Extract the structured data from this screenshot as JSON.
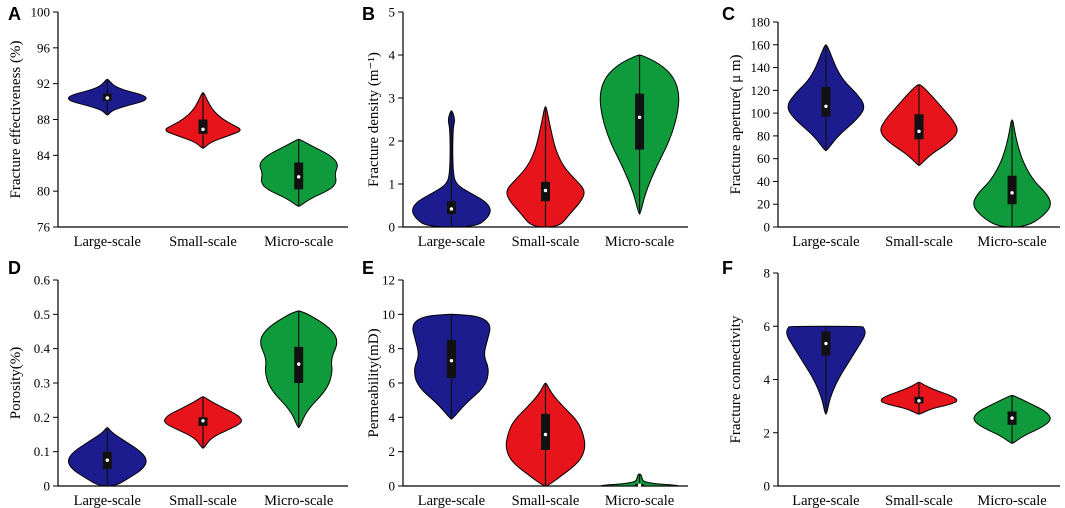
{
  "chart_data": [
    {
      "panel": "A",
      "type": "violin",
      "ylabel": "Fracture effectiveness (%)",
      "ylim": [
        76,
        100
      ],
      "yticks": [
        76,
        80,
        84,
        88,
        92,
        96,
        100
      ],
      "categories": [
        "Large-scale",
        "Small-scale",
        "Micro-scale"
      ],
      "colors": [
        "#1c1c8e",
        "#e8141c",
        "#0f9a3c"
      ],
      "series": [
        {
          "name": "Large-scale",
          "min": 88.5,
          "max": 92.5,
          "q1": 90.1,
          "median": 90.4,
          "q3": 90.9,
          "profile": [
            [
              88.5,
              0.02
            ],
            [
              89.0,
              0.12
            ],
            [
              89.5,
              0.45
            ],
            [
              90.0,
              0.9
            ],
            [
              90.4,
              1.0
            ],
            [
              90.8,
              0.85
            ],
            [
              91.3,
              0.4
            ],
            [
              91.8,
              0.15
            ],
            [
              92.5,
              0.02
            ]
          ]
        },
        {
          "name": "Small-scale",
          "min": 84.8,
          "max": 91.0,
          "q1": 86.4,
          "median": 86.9,
          "q3": 88.0,
          "profile": [
            [
              84.8,
              0.02
            ],
            [
              85.5,
              0.2
            ],
            [
              86.2,
              0.65
            ],
            [
              86.8,
              1.0
            ],
            [
              87.4,
              0.75
            ],
            [
              88.0,
              0.5
            ],
            [
              89.0,
              0.25
            ],
            [
              90.2,
              0.1
            ],
            [
              91.0,
              0.02
            ]
          ]
        },
        {
          "name": "Micro-scale",
          "min": 78.3,
          "max": 85.8,
          "q1": 80.2,
          "median": 81.6,
          "q3": 83.2,
          "profile": [
            [
              78.3,
              0.02
            ],
            [
              79.2,
              0.3
            ],
            [
              80.2,
              0.8
            ],
            [
              81.0,
              0.95
            ],
            [
              82.0,
              0.9
            ],
            [
              83.0,
              1.0
            ],
            [
              84.0,
              0.8
            ],
            [
              85.0,
              0.35
            ],
            [
              85.8,
              0.02
            ]
          ]
        }
      ]
    },
    {
      "panel": "B",
      "type": "violin",
      "ylabel": "Fracture density (m⁻¹)",
      "ylim": [
        0,
        5
      ],
      "yticks": [
        0,
        1,
        2,
        3,
        4,
        5
      ],
      "categories": [
        "Large-scale",
        "Small-scale",
        "Micro-scale"
      ],
      "colors": [
        "#1c1c8e",
        "#e8141c",
        "#0f9a3c"
      ],
      "series": [
        {
          "name": "Large-scale",
          "min": 0.0,
          "max": 2.7,
          "q1": 0.3,
          "median": 0.42,
          "q3": 0.6,
          "profile": [
            [
              0.0,
              0.6
            ],
            [
              0.2,
              0.9
            ],
            [
              0.4,
              1.0
            ],
            [
              0.6,
              0.85
            ],
            [
              0.8,
              0.45
            ],
            [
              1.0,
              0.1
            ],
            [
              1.3,
              0.04
            ],
            [
              1.8,
              0.03
            ],
            [
              2.3,
              0.04
            ],
            [
              2.5,
              0.09
            ],
            [
              2.7,
              0.02
            ]
          ]
        },
        {
          "name": "Small-scale",
          "min": 0.0,
          "max": 2.8,
          "q1": 0.6,
          "median": 0.85,
          "q3": 1.05,
          "profile": [
            [
              0.0,
              0.35
            ],
            [
              0.3,
              0.6
            ],
            [
              0.6,
              0.9
            ],
            [
              0.85,
              1.0
            ],
            [
              1.1,
              0.75
            ],
            [
              1.4,
              0.45
            ],
            [
              1.8,
              0.25
            ],
            [
              2.2,
              0.15
            ],
            [
              2.5,
              0.08
            ],
            [
              2.8,
              0.02
            ]
          ]
        },
        {
          "name": "Micro-scale",
          "min": 0.3,
          "max": 4.0,
          "q1": 1.8,
          "median": 2.55,
          "q3": 3.1,
          "profile": [
            [
              0.3,
              0.02
            ],
            [
              0.8,
              0.15
            ],
            [
              1.4,
              0.42
            ],
            [
              2.0,
              0.75
            ],
            [
              2.6,
              0.95
            ],
            [
              3.1,
              1.0
            ],
            [
              3.5,
              0.85
            ],
            [
              3.8,
              0.5
            ],
            [
              4.0,
              0.05
            ]
          ]
        }
      ]
    },
    {
      "panel": "C",
      "type": "violin",
      "ylabel": "Fracture aperture( μ m)",
      "ylim": [
        0,
        180
      ],
      "yticks": [
        0,
        20,
        40,
        60,
        80,
        100,
        120,
        140,
        160,
        180
      ],
      "categories": [
        "Large-scale",
        "Small-scale",
        "Micro-scale"
      ],
      "colors": [
        "#1c1c8e",
        "#e8141c",
        "#0f9a3c"
      ],
      "series": [
        {
          "name": "Large-scale",
          "min": 67,
          "max": 160,
          "q1": 97,
          "median": 106,
          "q3": 123,
          "profile": [
            [
              67,
              0.02
            ],
            [
              80,
              0.3
            ],
            [
              95,
              0.8
            ],
            [
              106,
              1.0
            ],
            [
              118,
              0.75
            ],
            [
              128,
              0.45
            ],
            [
              140,
              0.25
            ],
            [
              152,
              0.12
            ],
            [
              160,
              0.02
            ]
          ]
        },
        {
          "name": "Small-scale",
          "min": 54,
          "max": 125,
          "q1": 77,
          "median": 84,
          "q3": 99,
          "profile": [
            [
              54,
              0.02
            ],
            [
              64,
              0.3
            ],
            [
              74,
              0.75
            ],
            [
              84,
              1.0
            ],
            [
              94,
              0.85
            ],
            [
              104,
              0.6
            ],
            [
              114,
              0.35
            ],
            [
              125,
              0.05
            ]
          ]
        },
        {
          "name": "Micro-scale",
          "min": 0,
          "max": 94,
          "q1": 20,
          "median": 30,
          "q3": 45,
          "profile": [
            [
              0,
              0.35
            ],
            [
              10,
              0.8
            ],
            [
              20,
              1.0
            ],
            [
              30,
              0.85
            ],
            [
              40,
              0.55
            ],
            [
              55,
              0.3
            ],
            [
              70,
              0.15
            ],
            [
              85,
              0.06
            ],
            [
              94,
              0.02
            ]
          ]
        }
      ]
    },
    {
      "panel": "D",
      "type": "violin",
      "ylabel": "Porosity(%)",
      "ylim": [
        0,
        0.6
      ],
      "yticks": [
        0,
        0.1,
        0.2,
        0.3,
        0.4,
        0.5,
        0.6
      ],
      "categories": [
        "Large-scale",
        "Small-scale",
        "Micro-scale"
      ],
      "colors": [
        "#1c1c8e",
        "#e8141c",
        "#0f9a3c"
      ],
      "series": [
        {
          "name": "Large-scale",
          "min": 0.0,
          "max": 0.17,
          "q1": 0.05,
          "median": 0.075,
          "q3": 0.1,
          "profile": [
            [
              0.0,
              0.2
            ],
            [
              0.02,
              0.5
            ],
            [
              0.05,
              0.9
            ],
            [
              0.075,
              1.0
            ],
            [
              0.1,
              0.85
            ],
            [
              0.13,
              0.45
            ],
            [
              0.155,
              0.12
            ],
            [
              0.17,
              0.02
            ]
          ]
        },
        {
          "name": "Small-scale",
          "min": 0.11,
          "max": 0.26,
          "q1": 0.175,
          "median": 0.19,
          "q3": 0.2,
          "profile": [
            [
              0.11,
              0.02
            ],
            [
              0.14,
              0.2
            ],
            [
              0.165,
              0.65
            ],
            [
              0.185,
              1.0
            ],
            [
              0.205,
              0.9
            ],
            [
              0.225,
              0.55
            ],
            [
              0.245,
              0.22
            ],
            [
              0.26,
              0.02
            ]
          ]
        },
        {
          "name": "Micro-scale",
          "min": 0.17,
          "max": 0.51,
          "q1": 0.3,
          "median": 0.355,
          "q3": 0.405,
          "profile": [
            [
              0.17,
              0.02
            ],
            [
              0.22,
              0.2
            ],
            [
              0.28,
              0.7
            ],
            [
              0.33,
              0.85
            ],
            [
              0.37,
              0.8
            ],
            [
              0.42,
              1.0
            ],
            [
              0.46,
              0.8
            ],
            [
              0.5,
              0.25
            ],
            [
              0.51,
              0.02
            ]
          ]
        }
      ]
    },
    {
      "panel": "E",
      "type": "violin",
      "ylabel": "Permeability(mD)",
      "ylim": [
        0,
        12
      ],
      "yticks": [
        0,
        2,
        4,
        6,
        8,
        10,
        12
      ],
      "categories": [
        "Large-scale",
        "Small-scale",
        "Micro-scale"
      ],
      "colors": [
        "#1c1c8e",
        "#e8141c",
        "#0f9a3c"
      ],
      "series": [
        {
          "name": "Large-scale",
          "min": 3.9,
          "max": 10.0,
          "q1": 6.3,
          "median": 7.3,
          "q3": 8.5,
          "profile": [
            [
              3.9,
              0.02
            ],
            [
              4.8,
              0.35
            ],
            [
              5.8,
              0.85
            ],
            [
              6.8,
              0.95
            ],
            [
              7.6,
              0.8
            ],
            [
              8.5,
              0.9
            ],
            [
              9.4,
              1.0
            ],
            [
              9.9,
              0.7
            ],
            [
              10.0,
              0.05
            ]
          ]
        },
        {
          "name": "Small-scale",
          "min": 0.0,
          "max": 6.0,
          "q1": 2.1,
          "median": 3.0,
          "q3": 4.2,
          "profile": [
            [
              0.0,
              0.05
            ],
            [
              0.6,
              0.4
            ],
            [
              1.4,
              0.85
            ],
            [
              2.2,
              1.0
            ],
            [
              3.0,
              0.95
            ],
            [
              3.8,
              0.8
            ],
            [
              4.6,
              0.45
            ],
            [
              5.4,
              0.15
            ],
            [
              6.0,
              0.02
            ]
          ]
        },
        {
          "name": "Micro-scale",
          "min": 0.0,
          "max": 0.7,
          "q1": 0.0,
          "median": 0.05,
          "q3": 0.12,
          "profile": [
            [
              0.0,
              1.0
            ],
            [
              0.05,
              0.9
            ],
            [
              0.12,
              0.4
            ],
            [
              0.25,
              0.1
            ],
            [
              0.45,
              0.06
            ],
            [
              0.6,
              0.05
            ],
            [
              0.7,
              0.02
            ]
          ]
        }
      ]
    },
    {
      "panel": "F",
      "type": "violin",
      "ylabel": "Fracture connectivity",
      "ylim": [
        0,
        8
      ],
      "yticks": [
        0,
        2,
        4,
        6,
        8
      ],
      "categories": [
        "Large-scale",
        "Small-scale",
        "Micro-scale"
      ],
      "colors": [
        "#1c1c8e",
        "#e8141c",
        "#0f9a3c"
      ],
      "series": [
        {
          "name": "Large-scale",
          "min": 2.7,
          "max": 6.0,
          "q1": 4.9,
          "median": 5.35,
          "q3": 5.8,
          "profile": [
            [
              2.7,
              0.02
            ],
            [
              3.3,
              0.1
            ],
            [
              4.0,
              0.3
            ],
            [
              4.6,
              0.55
            ],
            [
              5.2,
              0.8
            ],
            [
              5.7,
              1.0
            ],
            [
              5.95,
              0.95
            ],
            [
              6.0,
              0.9
            ]
          ]
        },
        {
          "name": "Small-scale",
          "min": 2.7,
          "max": 3.9,
          "q1": 3.1,
          "median": 3.2,
          "q3": 3.35,
          "profile": [
            [
              2.7,
              0.02
            ],
            [
              2.9,
              0.3
            ],
            [
              3.05,
              0.75
            ],
            [
              3.2,
              1.0
            ],
            [
              3.4,
              0.8
            ],
            [
              3.6,
              0.4
            ],
            [
              3.8,
              0.12
            ],
            [
              3.9,
              0.02
            ]
          ]
        },
        {
          "name": "Micro-scale",
          "min": 1.6,
          "max": 3.4,
          "q1": 2.3,
          "median": 2.55,
          "q3": 2.8,
          "profile": [
            [
              1.6,
              0.02
            ],
            [
              1.9,
              0.3
            ],
            [
              2.2,
              0.75
            ],
            [
              2.5,
              1.0
            ],
            [
              2.8,
              0.85
            ],
            [
              3.1,
              0.45
            ],
            [
              3.35,
              0.1
            ],
            [
              3.4,
              0.02
            ]
          ]
        }
      ]
    }
  ]
}
